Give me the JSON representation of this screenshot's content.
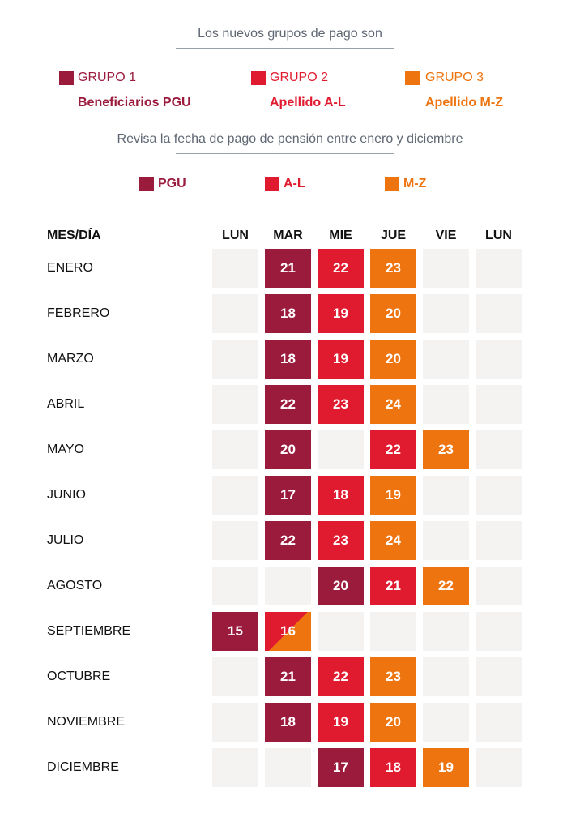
{
  "colors": {
    "pgu": "#9b1b3d",
    "al": "#e11b2f",
    "mz": "#ee7410",
    "empty": "#f4f3f1"
  },
  "intro": "Los nuevos grupos de pago son",
  "groups": [
    {
      "label": "GRUPO 1",
      "desc": "Beneficiarios PGU",
      "key": "pgu"
    },
    {
      "label": "GRUPO 2",
      "desc": "Apellido A-L",
      "key": "al"
    },
    {
      "label": "GRUPO 3",
      "desc": "Apellido M-Z",
      "key": "mz"
    }
  ],
  "subtitle": "Revisa la fecha de pago de pensión entre enero y diciembre",
  "legend": [
    {
      "label": "PGU",
      "key": "pgu"
    },
    {
      "label": "A-L",
      "key": "al"
    },
    {
      "label": "M-Z",
      "key": "mz"
    }
  ],
  "table": {
    "header_label": "MES/DÍA",
    "days": [
      "LUN",
      "MAR",
      "MIE",
      "JUE",
      "VIE",
      "LUN"
    ],
    "rows": [
      {
        "month": "ENERO",
        "cells": [
          null,
          {
            "v": "21",
            "g": "pgu"
          },
          {
            "v": "22",
            "g": "al"
          },
          {
            "v": "23",
            "g": "mz"
          },
          null,
          null
        ]
      },
      {
        "month": "FEBRERO",
        "cells": [
          null,
          {
            "v": "18",
            "g": "pgu"
          },
          {
            "v": "19",
            "g": "al"
          },
          {
            "v": "20",
            "g": "mz"
          },
          null,
          null
        ]
      },
      {
        "month": "MARZO",
        "cells": [
          null,
          {
            "v": "18",
            "g": "pgu"
          },
          {
            "v": "19",
            "g": "al"
          },
          {
            "v": "20",
            "g": "mz"
          },
          null,
          null
        ]
      },
      {
        "month": "ABRIL",
        "cells": [
          null,
          {
            "v": "22",
            "g": "pgu"
          },
          {
            "v": "23",
            "g": "al"
          },
          {
            "v": "24",
            "g": "mz"
          },
          null,
          null
        ]
      },
      {
        "month": "MAYO",
        "cells": [
          null,
          {
            "v": "20",
            "g": "pgu"
          },
          null,
          {
            "v": "22",
            "g": "al"
          },
          {
            "v": "23",
            "g": "mz"
          },
          null
        ]
      },
      {
        "month": "JUNIO",
        "cells": [
          null,
          {
            "v": "17",
            "g": "pgu"
          },
          {
            "v": "18",
            "g": "al"
          },
          {
            "v": "19",
            "g": "mz"
          },
          null,
          null
        ]
      },
      {
        "month": "JULIO",
        "cells": [
          null,
          {
            "v": "22",
            "g": "pgu"
          },
          {
            "v": "23",
            "g": "al"
          },
          {
            "v": "24",
            "g": "mz"
          },
          null,
          null
        ]
      },
      {
        "month": "AGOSTO",
        "cells": [
          null,
          null,
          {
            "v": "20",
            "g": "pgu"
          },
          {
            "v": "21",
            "g": "al"
          },
          {
            "v": "22",
            "g": "mz"
          },
          null
        ]
      },
      {
        "month": "SEPTIEMBRE",
        "cells": [
          {
            "v": "15",
            "g": "pgu"
          },
          {
            "v": "16",
            "g": "split"
          },
          null,
          null,
          null,
          null
        ]
      },
      {
        "month": "OCTUBRE",
        "cells": [
          null,
          {
            "v": "21",
            "g": "pgu"
          },
          {
            "v": "22",
            "g": "al"
          },
          {
            "v": "23",
            "g": "mz"
          },
          null,
          null
        ]
      },
      {
        "month": "NOVIEMBRE",
        "cells": [
          null,
          {
            "v": "18",
            "g": "pgu"
          },
          {
            "v": "19",
            "g": "al"
          },
          {
            "v": "20",
            "g": "mz"
          },
          null,
          null
        ]
      },
      {
        "month": "DICIEMBRE",
        "cells": [
          null,
          null,
          {
            "v": "17",
            "g": "pgu"
          },
          {
            "v": "18",
            "g": "al"
          },
          {
            "v": "19",
            "g": "mz"
          },
          null
        ]
      }
    ]
  }
}
